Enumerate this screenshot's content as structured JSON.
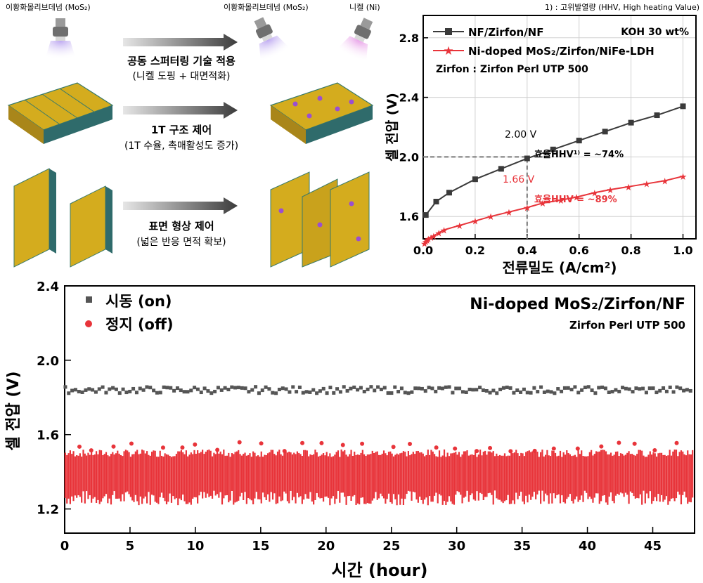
{
  "schematic": {
    "label_left": "이황화몰리브데넘 (MoS₂)",
    "label_mid": "이황화몰리브데넘 (MoS₂)",
    "label_right": "니켈 (Ni)",
    "steps": [
      {
        "title": "공동 스퍼터링 기술 적용",
        "sub": "(니켈 도핑 + 대면적화)"
      },
      {
        "title": "1T 구조 제어",
        "sub": "(1T 수율, 촉매활성도 증가)"
      },
      {
        "title": "표면 형상 제어",
        "sub": "(넓은 반응 면적 확보)"
      }
    ],
    "colors": {
      "sulfur": "#d9b21a",
      "mo": "#2f6b6b",
      "ni": "#9a4fd1",
      "arrow": "#555555"
    }
  },
  "chart_data": [
    {
      "type": "line",
      "footnote": "1) : 고위발열량 (HHV, High heating Value)",
      "xlabel": "전류밀도 (A/cm²)",
      "ylabel": "셀 전압 (V)",
      "xlim": [
        0.0,
        1.05
      ],
      "ylim": [
        1.45,
        2.95
      ],
      "xticks": [
        "0.0",
        "0.2",
        "0.4",
        "0.6",
        "0.8",
        "1.0"
      ],
      "yticks": [
        "1.6",
        "2.0",
        "2.4",
        "2.8"
      ],
      "grid": true,
      "legend_position": "top-left",
      "annotations_text": {
        "electrolyte": "KOH 30 wt%",
        "membrane": "Zirfon : Zirfon Perl UTP 500",
        "v1": "2.00 V",
        "v2": "1.66 V",
        "eff1": "효율HHV¹⁾ = ~74%",
        "eff2": "효율HHV = ~89%"
      },
      "series": [
        {
          "name": "NF/Zirfon/NF",
          "color": "#3a3a3a",
          "marker": "square",
          "x": [
            0.01,
            0.05,
            0.1,
            0.2,
            0.3,
            0.4,
            0.5,
            0.6,
            0.7,
            0.8,
            0.9,
            1.0
          ],
          "y": [
            1.61,
            1.7,
            1.76,
            1.85,
            1.92,
            1.99,
            2.05,
            2.11,
            2.17,
            2.23,
            2.28,
            2.34
          ]
        },
        {
          "name": "Ni-doped MoS₂/Zirfon/NiFe-LDH",
          "color": "#e8343a",
          "marker": "star",
          "x": [
            0.005,
            0.01,
            0.015,
            0.02,
            0.03,
            0.04,
            0.06,
            0.08,
            0.14,
            0.2,
            0.26,
            0.33,
            0.4,
            0.46,
            0.53,
            0.59,
            0.66,
            0.72,
            0.79,
            0.86,
            0.93,
            1.0
          ],
          "y": [
            1.42,
            1.43,
            1.44,
            1.45,
            1.46,
            1.47,
            1.49,
            1.51,
            1.54,
            1.57,
            1.6,
            1.63,
            1.66,
            1.69,
            1.71,
            1.73,
            1.76,
            1.78,
            1.8,
            1.82,
            1.84,
            1.87
          ]
        }
      ],
      "guides": [
        {
          "x": 0.4,
          "y": 2.0
        }
      ]
    },
    {
      "type": "scatter",
      "title": "Ni-doped MoS₂/Zirfon/NF",
      "subtitle": "Zirfon Perl UTP 500",
      "xlabel": "시간 (hour)",
      "ylabel": "셀 전압 (V)",
      "xlim": [
        0,
        48.2
      ],
      "ylim": [
        1.07,
        2.4
      ],
      "xticks": [
        "0",
        "5",
        "10",
        "15",
        "20",
        "25",
        "30",
        "35",
        "40",
        "45"
      ],
      "yticks": [
        "1.2",
        "1.6",
        "2.0",
        "2.4"
      ],
      "legend_position": "top-left",
      "series": [
        {
          "name": "시동 (on)",
          "color": "#555555",
          "marker": "square",
          "on_voltage": 1.84,
          "on_range": [
            1.78,
            1.87
          ]
        },
        {
          "name": "정지 (off)",
          "color": "#e8343a",
          "marker": "circle",
          "off_range": [
            1.22,
            1.56
          ]
        }
      ]
    }
  ]
}
